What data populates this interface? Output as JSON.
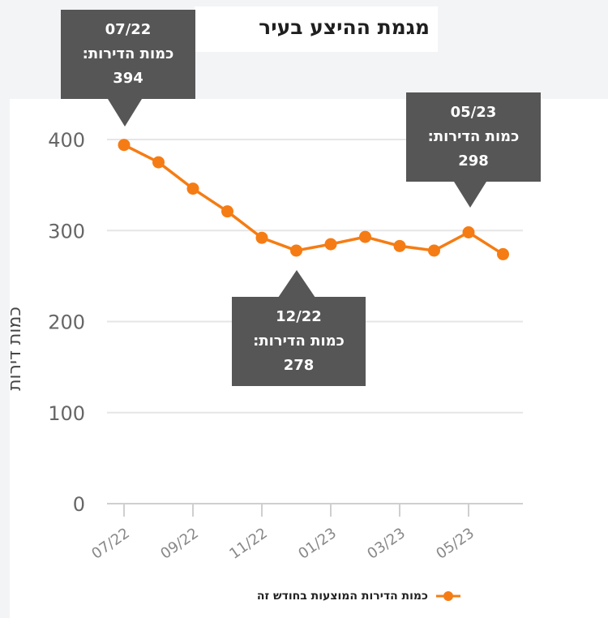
{
  "chart_data": {
    "type": "line",
    "title": "מגמת ההיצע בעיר",
    "ylabel": "כמות דירות",
    "xlabel": "",
    "ylim": [
      0,
      400
    ],
    "yticks": [
      0,
      100,
      200,
      300,
      400
    ],
    "x_tick_labels": [
      "07/22",
      "09/22",
      "11/22",
      "01/23",
      "03/23",
      "05/23"
    ],
    "series": [
      {
        "name": "כמות הדירות המוצעות בחודש זה",
        "color": "#f57c14",
        "points": [
          {
            "x": "07/22",
            "y": 394
          },
          {
            "x": "08/22",
            "y": 375
          },
          {
            "x": "09/22",
            "y": 346
          },
          {
            "x": "10/22",
            "y": 321
          },
          {
            "x": "11/22",
            "y": 292
          },
          {
            "x": "12/22",
            "y": 278
          },
          {
            "x": "01/23",
            "y": 285
          },
          {
            "x": "02/23",
            "y": 293
          },
          {
            "x": "03/23",
            "y": 283
          },
          {
            "x": "04/23",
            "y": 278
          },
          {
            "x": "05/23",
            "y": 298
          },
          {
            "x": "06/23",
            "y": 274
          }
        ]
      }
    ],
    "annotations": [
      {
        "date": "07/22",
        "label": "כמות הדירות:",
        "value": "394"
      },
      {
        "date": "05/23",
        "label": "כמות הדירות:",
        "value": "298"
      },
      {
        "date": "12/22",
        "label": "כמות הדירות:",
        "value": "278"
      }
    ],
    "legend": {
      "label": "כמות הדירות המוצעות בחודש זה",
      "position": "bottom"
    }
  }
}
